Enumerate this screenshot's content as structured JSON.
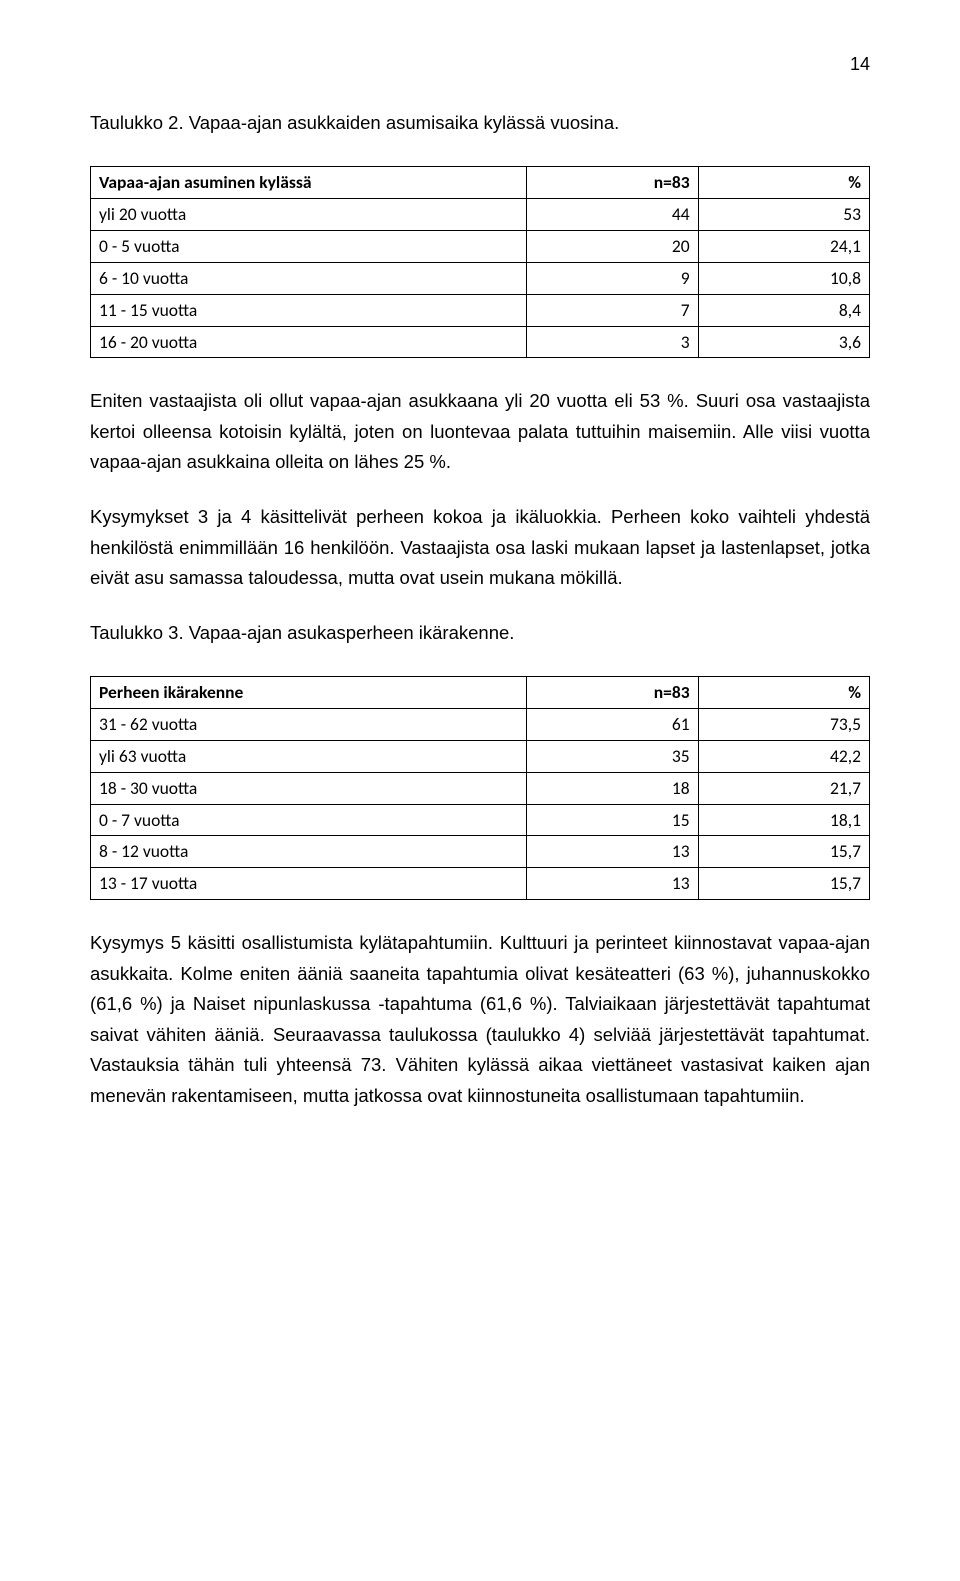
{
  "pageNumber": "14",
  "caption1": "Taulukko 2. Vapaa-ajan asukkaiden asumisaika kylässä vuosina.",
  "table1": {
    "headers": [
      "Vapaa-ajan asuminen kylässä",
      "n=83",
      "%"
    ],
    "rows": [
      [
        "yli 20 vuotta",
        "44",
        "53"
      ],
      [
        "0 - 5 vuotta",
        "20",
        "24,1"
      ],
      [
        "6 - 10 vuotta",
        "9",
        "10,8"
      ],
      [
        "11 - 15 vuotta",
        "7",
        "8,4"
      ],
      [
        "16 - 20 vuotta",
        "3",
        "3,6"
      ]
    ]
  },
  "para1": "Eniten vastaajista oli ollut vapaa-ajan asukkaana yli 20 vuotta eli 53 %. Suuri osa vastaajista kertoi olleensa kotoisin kylältä, joten on luontevaa palata tuttuihin maisemiin. Alle viisi vuotta vapaa-ajan asukkaina olleita on lähes 25 %.",
  "para2": "Kysymykset 3 ja 4 käsittelivät perheen kokoa ja ikäluokkia. Perheen koko vaihteli yhdestä henkilöstä enimmillään 16 henkilöön. Vastaajista osa laski mukaan lapset ja lastenlapset, jotka eivät asu samassa taloudessa, mutta ovat usein mukana mökillä.",
  "caption2": "Taulukko 3. Vapaa-ajan asukasperheen ikärakenne.",
  "table2": {
    "headers": [
      "Perheen ikärakenne",
      "n=83",
      "%"
    ],
    "rows": [
      [
        "31 - 62 vuotta",
        "61",
        "73,5"
      ],
      [
        "yli 63 vuotta",
        "35",
        "42,2"
      ],
      [
        "18 - 30 vuotta",
        "18",
        "21,7"
      ],
      [
        "0 - 7 vuotta",
        "15",
        "18,1"
      ],
      [
        "8 - 12 vuotta",
        "13",
        "15,7"
      ],
      [
        "13 - 17 vuotta",
        "13",
        "15,7"
      ]
    ]
  },
  "para3": "Kysymys 5 käsitti osallistumista kylätapahtumiin. Kulttuuri ja perinteet kiinnostavat vapaa-ajan asukkaita. Kolme eniten ääniä saaneita tapahtumia olivat kesäteatteri (63 %), juhannuskokko (61,6 %) ja Naiset nipunlaskussa -tapahtuma (61,6 %). Talviaikaan järjestettävät tapahtumat saivat vähiten ääniä. Seuraavassa taulukossa (taulukko 4) selviää järjestettävät tapahtumat. Vastauksia tähän tuli yhteensä 73. Vähiten kylässä aikaa viettäneet vastasivat kaiken ajan menevän rakentamiseen, mutta jatkossa ovat kiinnostuneita osallistumaan tapahtumiin."
}
